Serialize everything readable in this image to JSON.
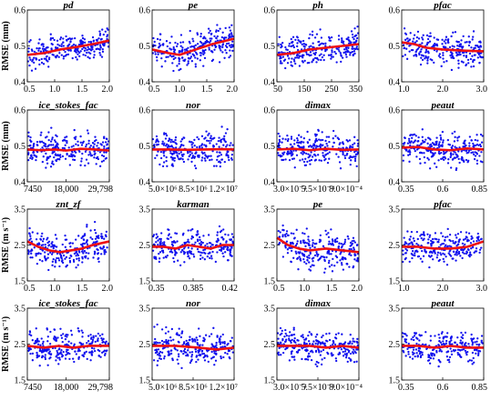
{
  "figure": {
    "background": "#ffffff",
    "point_color": "#1010ee",
    "trend_color": "#ee1111"
  },
  "chart_data": [
    {
      "type": "scatter",
      "title": "pd",
      "ylabel": "RMSE (mm)",
      "xlim": [
        0.5,
        2.0
      ],
      "ylim": [
        0.4,
        0.6
      ],
      "xticks": [
        0.5,
        1.0,
        1.5,
        2.0
      ],
      "xtick_labels": [
        "0.5",
        "1.0",
        "1.5",
        "2.0"
      ],
      "yticks": [
        0.4,
        0.5,
        0.6
      ],
      "ytick_labels": [
        "0.4",
        "0.5",
        "0.6"
      ],
      "y_range": [
        0.45,
        0.55
      ],
      "trend": [
        [
          0.5,
          0.475
        ],
        [
          0.8,
          0.48
        ],
        [
          1.1,
          0.49
        ],
        [
          1.4,
          0.497
        ],
        [
          1.7,
          0.505
        ],
        [
          2.0,
          0.515
        ]
      ]
    },
    {
      "type": "scatter",
      "title": "pe",
      "ylabel": "",
      "xlim": [
        0.5,
        2.0
      ],
      "ylim": [
        0.4,
        0.6
      ],
      "xticks": [
        0.5,
        1.0,
        1.5,
        2.0
      ],
      "xtick_labels": [
        "0.5",
        "1.0",
        "1.5",
        "2.0"
      ],
      "yticks": [
        0.4,
        0.5,
        0.6
      ],
      "ytick_labels": [
        "0.4",
        "0.5",
        "0.6"
      ],
      "y_range": [
        0.44,
        0.56
      ],
      "trend": [
        [
          0.5,
          0.49
        ],
        [
          0.8,
          0.48
        ],
        [
          1.0,
          0.475
        ],
        [
          1.3,
          0.49
        ],
        [
          1.6,
          0.505
        ],
        [
          2.0,
          0.52
        ]
      ]
    },
    {
      "type": "scatter",
      "title": "ph",
      "ylabel": "",
      "xlim": [
        50,
        350
      ],
      "ylim": [
        0.4,
        0.6
      ],
      "xticks": [
        50,
        150,
        250,
        350
      ],
      "xtick_labels": [
        "50",
        "150",
        "250",
        "350"
      ],
      "yticks": [
        0.4,
        0.5,
        0.6
      ],
      "ytick_labels": [
        "0.4",
        "0.5",
        "0.6"
      ],
      "y_range": [
        0.44,
        0.55
      ],
      "trend": [
        [
          50,
          0.475
        ],
        [
          110,
          0.48
        ],
        [
          170,
          0.49
        ],
        [
          230,
          0.495
        ],
        [
          290,
          0.5
        ],
        [
          350,
          0.505
        ]
      ]
    },
    {
      "type": "scatter",
      "title": "pfac",
      "ylabel": "",
      "xlim": [
        1.0,
        3.0
      ],
      "ylim": [
        0.4,
        0.6
      ],
      "xticks": [
        1.0,
        2.0,
        3.0
      ],
      "xtick_labels": [
        "1.0",
        "2.0",
        "3.0"
      ],
      "yticks": [
        0.4,
        0.5,
        0.6
      ],
      "ytick_labels": [
        "0.4",
        "0.5",
        "0.6"
      ],
      "y_range": [
        0.44,
        0.56
      ],
      "trend": [
        [
          1.0,
          0.51
        ],
        [
          1.3,
          0.505
        ],
        [
          1.6,
          0.495
        ],
        [
          2.0,
          0.49
        ],
        [
          2.5,
          0.487
        ],
        [
          3.0,
          0.485
        ]
      ]
    },
    {
      "type": "scatter",
      "title": "ice_stokes_fac",
      "ylabel": "RMSE (mm)",
      "xlim": [
        7450,
        29798
      ],
      "ylim": [
        0.4,
        0.6
      ],
      "xticks": [
        7450,
        18000,
        29798
      ],
      "xtick_labels": [
        "7450",
        "18,000",
        "29,798"
      ],
      "yticks": [
        0.4,
        0.5,
        0.6
      ],
      "ytick_labels": [
        "0.4",
        "0.5",
        "0.6"
      ],
      "y_range": [
        0.44,
        0.56
      ],
      "trend": [
        [
          7450,
          0.49
        ],
        [
          11000,
          0.488
        ],
        [
          15000,
          0.49
        ],
        [
          18000,
          0.487
        ],
        [
          22000,
          0.492
        ],
        [
          26000,
          0.49
        ],
        [
          29798,
          0.487
        ]
      ]
    },
    {
      "type": "scatter",
      "title": "nor",
      "ylabel": "",
      "xlim": [
        5000000,
        12000000
      ],
      "ylim": [
        0.4,
        0.6
      ],
      "xticks": [
        5000000,
        8500000,
        12000000
      ],
      "xtick_labels": [
        "5.0×10⁶",
        "8.5×10⁶",
        "1.2×10⁷"
      ],
      "yticks": [
        0.4,
        0.5,
        0.6
      ],
      "ytick_labels": [
        "0.4",
        "0.5",
        "0.6"
      ],
      "y_range": [
        0.44,
        0.56
      ],
      "trend": [
        [
          5000000,
          0.49
        ],
        [
          6500000,
          0.49
        ],
        [
          8000000,
          0.489
        ],
        [
          9500000,
          0.49
        ],
        [
          11000000,
          0.491
        ],
        [
          12000000,
          0.49
        ]
      ]
    },
    {
      "type": "scatter",
      "title": "dimax",
      "ylabel": "",
      "xlim": [
        0.0003,
        0.0008
      ],
      "ylim": [
        0.4,
        0.6
      ],
      "xticks": [
        0.0003,
        0.00055,
        0.0008
      ],
      "xtick_labels": [
        "3.0×10⁻⁴",
        "5.5×10⁻⁴",
        "8.0×10⁻⁴"
      ],
      "yticks": [
        0.4,
        0.5,
        0.6
      ],
      "ytick_labels": [
        "0.4",
        "0.5",
        "0.6"
      ],
      "y_range": [
        0.44,
        0.56
      ],
      "trend": [
        [
          0.0003,
          0.49
        ],
        [
          0.0004,
          0.492
        ],
        [
          0.0005,
          0.488
        ],
        [
          0.0006,
          0.492
        ],
        [
          0.0007,
          0.489
        ],
        [
          0.0008,
          0.49
        ]
      ]
    },
    {
      "type": "scatter",
      "title": "peaut",
      "ylabel": "",
      "xlim": [
        0.35,
        0.85
      ],
      "ylim": [
        0.4,
        0.6
      ],
      "xticks": [
        0.35,
        0.6,
        0.85
      ],
      "xtick_labels": [
        "0.35",
        "0.6",
        "0.85"
      ],
      "yticks": [
        0.4,
        0.5,
        0.6
      ],
      "ytick_labels": [
        "0.4",
        "0.5",
        "0.6"
      ],
      "y_range": [
        0.44,
        0.56
      ],
      "trend": [
        [
          0.35,
          0.495
        ],
        [
          0.45,
          0.497
        ],
        [
          0.55,
          0.49
        ],
        [
          0.65,
          0.488
        ],
        [
          0.75,
          0.493
        ],
        [
          0.85,
          0.49
        ]
      ]
    },
    {
      "type": "scatter",
      "title": "znt_zf",
      "ylabel": "RMSE (m s⁻¹)",
      "xlim": [
        0.5,
        2.0
      ],
      "ylim": [
        1.5,
        3.5
      ],
      "xticks": [
        0.5,
        1.0,
        1.5,
        2.0
      ],
      "xtick_labels": [
        "0.5",
        "1.0",
        "1.5",
        "2.0"
      ],
      "yticks": [
        1.5,
        2.5,
        3.5
      ],
      "ytick_labels": [
        "1.5",
        "2.5",
        "3.5"
      ],
      "y_range": [
        1.9,
        3.2
      ],
      "trend": [
        [
          0.5,
          2.6
        ],
        [
          0.7,
          2.45
        ],
        [
          0.9,
          2.35
        ],
        [
          1.1,
          2.3
        ],
        [
          1.3,
          2.35
        ],
        [
          1.5,
          2.4
        ],
        [
          1.7,
          2.5
        ],
        [
          2.0,
          2.6
        ]
      ]
    },
    {
      "type": "scatter",
      "title": "karman",
      "ylabel": "",
      "xlim": [
        0.35,
        0.42
      ],
      "ylim": [
        1.5,
        3.5
      ],
      "xticks": [
        0.35,
        0.385,
        0.42
      ],
      "xtick_labels": [
        "0.35",
        "0.385",
        "0.42"
      ],
      "yticks": [
        1.5,
        2.5,
        3.5
      ],
      "ytick_labels": [
        "1.5",
        "2.5",
        "3.5"
      ],
      "y_range": [
        1.9,
        3.1
      ],
      "trend": [
        [
          0.35,
          2.45
        ],
        [
          0.36,
          2.45
        ],
        [
          0.37,
          2.4
        ],
        [
          0.38,
          2.5
        ],
        [
          0.39,
          2.45
        ],
        [
          0.4,
          2.4
        ],
        [
          0.41,
          2.5
        ],
        [
          0.42,
          2.5
        ]
      ]
    },
    {
      "type": "scatter",
      "title": "pe",
      "ylabel": "",
      "xlim": [
        0.5,
        2.0
      ],
      "ylim": [
        1.5,
        3.5
      ],
      "xticks": [
        0.5,
        1.0,
        1.5,
        2.0
      ],
      "xtick_labels": [
        "0.5",
        "1.0",
        "1.5",
        "2.0"
      ],
      "yticks": [
        1.5,
        2.5,
        3.5
      ],
      "ytick_labels": [
        "1.5",
        "2.5",
        "3.5"
      ],
      "y_range": [
        1.9,
        3.2
      ],
      "trend": [
        [
          0.5,
          2.7
        ],
        [
          0.7,
          2.5
        ],
        [
          0.9,
          2.4
        ],
        [
          1.1,
          2.35
        ],
        [
          1.4,
          2.4
        ],
        [
          1.7,
          2.35
        ],
        [
          2.0,
          2.3
        ]
      ]
    },
    {
      "type": "scatter",
      "title": "pfac",
      "ylabel": "",
      "xlim": [
        1.0,
        3.0
      ],
      "ylim": [
        1.5,
        3.5
      ],
      "xticks": [
        1.0,
        2.0,
        3.0
      ],
      "xtick_labels": [
        "1.0",
        "2.0",
        "3.0"
      ],
      "yticks": [
        1.5,
        2.5,
        3.5
      ],
      "ytick_labels": [
        "1.5",
        "2.5",
        "3.5"
      ],
      "y_range": [
        1.9,
        3.1
      ],
      "trend": [
        [
          1.0,
          2.45
        ],
        [
          1.4,
          2.45
        ],
        [
          1.8,
          2.4
        ],
        [
          2.2,
          2.4
        ],
        [
          2.6,
          2.45
        ],
        [
          3.0,
          2.6
        ]
      ]
    },
    {
      "type": "scatter",
      "title": "ice_stokes_fac",
      "ylabel": "RMSE (m s⁻¹)",
      "xlim": [
        7450,
        29798
      ],
      "ylim": [
        1.5,
        3.5
      ],
      "xticks": [
        7450,
        18000,
        29798
      ],
      "xtick_labels": [
        "7450",
        "18,000",
        "29,798"
      ],
      "yticks": [
        1.5,
        2.5,
        3.5
      ],
      "ytick_labels": [
        "1.5",
        "2.5",
        "3.5"
      ],
      "y_range": [
        1.9,
        3.1
      ],
      "trend": [
        [
          7450,
          2.45
        ],
        [
          12000,
          2.4
        ],
        [
          16000,
          2.45
        ],
        [
          20000,
          2.4
        ],
        [
          24000,
          2.45
        ],
        [
          29798,
          2.45
        ]
      ]
    },
    {
      "type": "scatter",
      "title": "nor",
      "ylabel": "",
      "xlim": [
        5000000,
        12000000
      ],
      "ylim": [
        1.5,
        3.5
      ],
      "xticks": [
        5000000,
        8500000,
        12000000
      ],
      "xtick_labels": [
        "5.0×10⁶",
        "8.5×10⁶",
        "1.2×10⁷"
      ],
      "yticks": [
        1.5,
        2.5,
        3.5
      ],
      "ytick_labels": [
        "1.5",
        "2.5",
        "3.5"
      ],
      "y_range": [
        1.9,
        3.1
      ],
      "trend": [
        [
          5000000,
          2.45
        ],
        [
          7000000,
          2.45
        ],
        [
          9000000,
          2.4
        ],
        [
          10500000,
          2.35
        ],
        [
          12000000,
          2.4
        ]
      ]
    },
    {
      "type": "scatter",
      "title": "dimax",
      "ylabel": "",
      "xlim": [
        0.0003,
        0.0008
      ],
      "ylim": [
        1.5,
        3.5
      ],
      "xticks": [
        0.0003,
        0.00055,
        0.0008
      ],
      "xtick_labels": [
        "3.0×10⁻⁴",
        "5.5×10⁻⁴",
        "8.0×10⁻⁴"
      ],
      "yticks": [
        1.5,
        2.5,
        3.5
      ],
      "ytick_labels": [
        "1.5",
        "2.5",
        "3.5"
      ],
      "y_range": [
        1.9,
        3.1
      ],
      "trend": [
        [
          0.0003,
          2.45
        ],
        [
          0.0004,
          2.45
        ],
        [
          0.0005,
          2.45
        ],
        [
          0.0006,
          2.4
        ],
        [
          0.0007,
          2.45
        ],
        [
          0.0008,
          2.4
        ]
      ]
    },
    {
      "type": "scatter",
      "title": "peaut",
      "ylabel": "",
      "xlim": [
        0.35,
        0.85
      ],
      "ylim": [
        1.5,
        3.5
      ],
      "xticks": [
        0.35,
        0.6,
        0.85
      ],
      "xtick_labels": [
        "0.35",
        "0.6",
        "0.85"
      ],
      "yticks": [
        1.5,
        2.5,
        3.5
      ],
      "ytick_labels": [
        "1.5",
        "2.5",
        "3.5"
      ],
      "y_range": [
        1.9,
        3.1
      ],
      "trend": [
        [
          0.35,
          2.45
        ],
        [
          0.45,
          2.45
        ],
        [
          0.55,
          2.4
        ],
        [
          0.65,
          2.45
        ],
        [
          0.75,
          2.4
        ],
        [
          0.85,
          2.4
        ]
      ]
    }
  ]
}
